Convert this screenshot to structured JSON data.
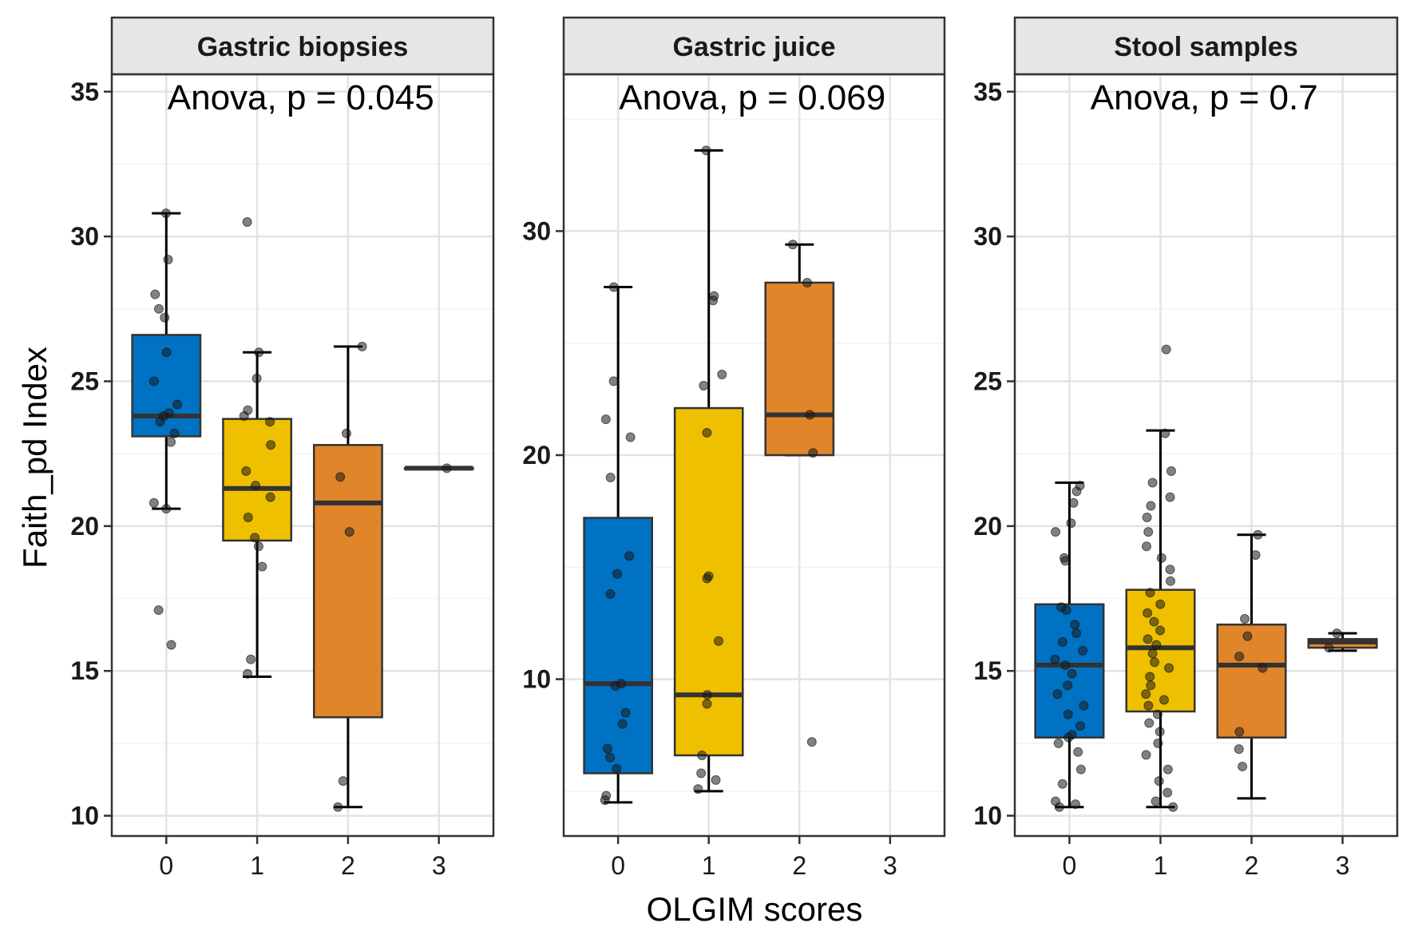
{
  "chart_data": {
    "type": "boxplot",
    "xlabel": "OLGIM scores",
    "ylabel": "Faith_pd Index",
    "categories": [
      "0",
      "1",
      "2",
      "3"
    ],
    "colors": {
      "0": "#0072c3",
      "1": "#efc000",
      "2": "#e0852a",
      "3": "#e0852a"
    },
    "grid": true,
    "legend": "none",
    "panels": [
      {
        "strip": "Gastric biopsies",
        "annotation": "Anova, p = 0.045",
        "ylim": [
          9.3,
          35.6
        ],
        "yticks": [
          10,
          15,
          20,
          25,
          30,
          35
        ],
        "boxes": [
          {
            "category": "0",
            "whisker_low": 20.6,
            "q1": 23.1,
            "median": 23.8,
            "q3": 26.6,
            "whisker_high": 30.8,
            "points": [
              30.8,
              29.2,
              28.0,
              27.5,
              27.2,
              26.0,
              25.0,
              24.2,
              23.9,
              23.8,
              23.6,
              23.2,
              22.9,
              20.8,
              20.6,
              17.1,
              15.9
            ]
          },
          {
            "category": "1",
            "whisker_low": 14.8,
            "q1": 19.5,
            "median": 21.3,
            "q3": 23.7,
            "whisker_high": 26.0,
            "points": [
              30.5,
              26.0,
              25.1,
              24.0,
              23.8,
              23.6,
              22.8,
              21.9,
              21.4,
              21.0,
              20.3,
              19.6,
              19.3,
              18.6,
              15.4,
              14.9
            ]
          },
          {
            "category": "2",
            "whisker_low": 10.3,
            "q1": 13.4,
            "median": 20.8,
            "q3": 22.8,
            "whisker_high": 26.2,
            "points": [
              26.2,
              23.2,
              21.7,
              19.8,
              11.2,
              10.3
            ]
          },
          {
            "category": "3",
            "whisker_low": 22.0,
            "q1": 22.0,
            "median": 22.0,
            "q3": 22.0,
            "whisker_high": 22.0,
            "points": [
              22.0
            ]
          }
        ]
      },
      {
        "strip": "Gastric juice",
        "annotation": "Anova, p = 0.069",
        "ylim": [
          3.0,
          37.0
        ],
        "yticks": [
          10,
          20,
          30
        ],
        "boxes": [
          {
            "category": "0",
            "whisker_low": 4.5,
            "q1": 5.8,
            "median": 9.8,
            "q3": 17.2,
            "whisker_high": 27.5,
            "points": [
              27.5,
              23.3,
              21.6,
              20.8,
              19.0,
              15.5,
              14.7,
              13.8,
              9.8,
              9.7,
              8.5,
              8.0,
              6.9,
              6.5,
              6.0,
              4.8,
              4.6
            ]
          },
          {
            "category": "1",
            "whisker_low": 5.0,
            "q1": 6.6,
            "median": 9.3,
            "q3": 22.1,
            "whisker_high": 33.6,
            "points": [
              33.6,
              27.1,
              26.9,
              23.6,
              23.1,
              21.0,
              14.6,
              14.5,
              11.7,
              9.3,
              8.9,
              6.6,
              5.8,
              5.5,
              5.1
            ]
          },
          {
            "category": "2",
            "whisker_low": 20.0,
            "q1": 20.0,
            "median": 21.8,
            "q3": 27.7,
            "whisker_high": 29.4,
            "points": [
              29.4,
              27.7,
              21.8,
              20.1,
              7.2
            ]
          }
        ]
      },
      {
        "strip": "Stool samples",
        "annotation": "Anova, p = 0.7",
        "ylim": [
          9.3,
          35.6
        ],
        "yticks": [
          10,
          15,
          20,
          25,
          30,
          35
        ],
        "boxes": [
          {
            "category": "0",
            "whisker_low": 10.3,
            "q1": 12.7,
            "median": 15.2,
            "q3": 17.3,
            "whisker_high": 21.5,
            "points": [
              21.4,
              21.2,
              20.8,
              20.1,
              19.8,
              18.9,
              18.8,
              17.2,
              17.1,
              16.6,
              16.3,
              16.0,
              15.7,
              15.4,
              15.2,
              14.9,
              14.5,
              14.2,
              13.8,
              13.5,
              13.1,
              12.8,
              12.7,
              12.5,
              12.2,
              11.6,
              11.1,
              10.5,
              10.3,
              10.4
            ]
          },
          {
            "category": "1",
            "whisker_low": 10.3,
            "q1": 13.6,
            "median": 15.8,
            "q3": 17.8,
            "whisker_high": 23.3,
            "points": [
              26.1,
              23.2,
              21.9,
              21.5,
              21.0,
              20.7,
              20.3,
              19.8,
              19.3,
              18.9,
              18.5,
              18.1,
              17.7,
              17.3,
              17.0,
              16.7,
              16.4,
              16.1,
              15.9,
              15.6,
              15.3,
              15.1,
              14.8,
              14.5,
              14.2,
              14.0,
              13.8,
              13.5,
              13.2,
              12.9,
              12.5,
              12.1,
              11.6,
              11.2,
              10.8,
              10.5,
              10.3
            ]
          },
          {
            "category": "2",
            "whisker_low": 10.6,
            "q1": 12.7,
            "median": 15.2,
            "q3": 16.6,
            "whisker_high": 19.7,
            "points": [
              19.7,
              19.0,
              16.8,
              16.2,
              15.5,
              15.1,
              12.9,
              12.3,
              11.7
            ]
          },
          {
            "category": "3",
            "whisker_low": 15.7,
            "q1": 15.8,
            "median": 16.0,
            "q3": 16.1,
            "whisker_high": 16.3,
            "points": [
              16.3,
              15.8
            ]
          }
        ]
      }
    ]
  }
}
